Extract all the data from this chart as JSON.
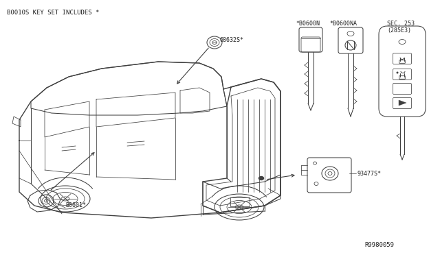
{
  "bg_color": "#ffffff",
  "title_text": "B0010S KEY SET INCLUDES *",
  "label_68632S": "68632S*",
  "label_B0601": "B0601*",
  "label_93477S": "93477S*",
  "label_B0600N": "*B0600N",
  "label_B0600NA": "*B0600NA",
  "label_SEC253": "SEC. 253\n(285E3)",
  "label_R9980059": "R9980059",
  "line_color": "#404040",
  "text_color": "#202020",
  "thin_lw": 0.55,
  "med_lw": 0.75,
  "thick_lw": 1.0
}
